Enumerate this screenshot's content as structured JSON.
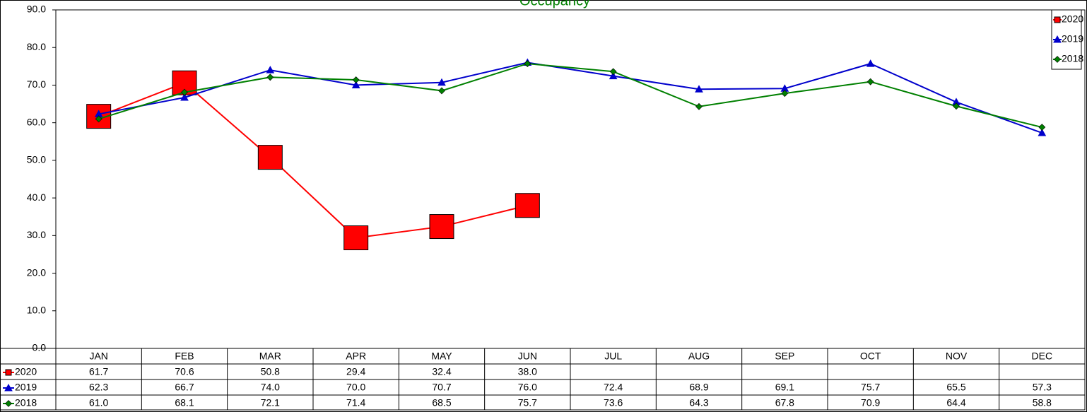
{
  "chart_data": {
    "type": "line",
    "title": "Occupancy",
    "title_color": "#008000",
    "categories": [
      "JAN",
      "FEB",
      "MAR",
      "APR",
      "MAY",
      "JUN",
      "JUL",
      "AUG",
      "SEP",
      "OCT",
      "NOV",
      "DEC"
    ],
    "series": [
      {
        "name": "2020",
        "color": "#ff0000",
        "marker": "square",
        "values": [
          61.7,
          70.6,
          50.8,
          29.4,
          32.4,
          38.0,
          null,
          null,
          null,
          null,
          null,
          null
        ],
        "value_labels": [
          "61.7",
          "70.6",
          "50.8",
          "29.4",
          "32.4",
          "38.0",
          null,
          null,
          null,
          null,
          null,
          null
        ]
      },
      {
        "name": "2019",
        "color": "#0000cc",
        "marker": "triangle",
        "values": [
          62.3,
          66.7,
          74.0,
          70.0,
          70.7,
          76.0,
          72.4,
          68.9,
          69.1,
          75.7,
          65.5,
          57.3
        ],
        "value_labels": [
          "62.3",
          "66.7",
          "74.0",
          "70.0",
          "70.7",
          "76.0",
          "72.4",
          "68.9",
          "69.1",
          "75.7",
          "65.5",
          "57.3"
        ]
      },
      {
        "name": "2018",
        "color": "#008000",
        "marker": "diamond",
        "values": [
          61.0,
          68.1,
          72.1,
          71.4,
          68.5,
          75.7,
          73.6,
          64.3,
          67.8,
          70.9,
          64.4,
          58.8
        ],
        "value_labels": [
          "61.0",
          "68.1",
          "72.1",
          "71.4",
          "68.5",
          "75.7",
          "73.6",
          "64.3",
          "67.8",
          "70.9",
          "64.4",
          "58.8"
        ]
      }
    ],
    "ylim": [
      0,
      90
    ],
    "yticks": [
      {
        "value": 0,
        "label": "0.0"
      },
      {
        "value": 10,
        "label": "10.0"
      },
      {
        "value": 20,
        "label": "20.0"
      },
      {
        "value": 30,
        "label": "30.0"
      },
      {
        "value": 40,
        "label": "40.0"
      },
      {
        "value": 50,
        "label": "50.0"
      },
      {
        "value": 60,
        "label": "60.0"
      },
      {
        "value": 70,
        "label": "70.0"
      },
      {
        "value": 80,
        "label": "80.0"
      },
      {
        "value": 90,
        "label": "90.0"
      }
    ],
    "grid": false,
    "legend": "top-right",
    "data_table": true
  }
}
